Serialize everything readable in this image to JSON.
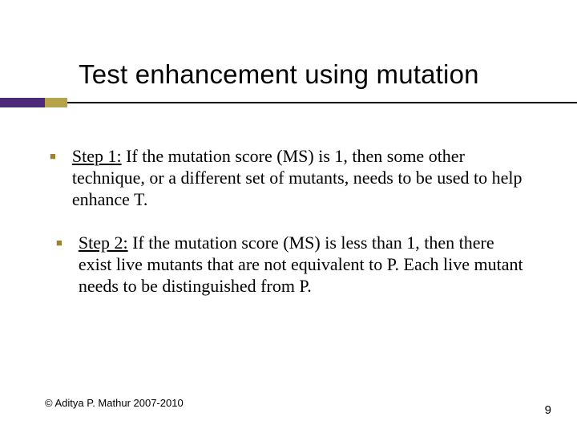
{
  "title": "Test enhancement using mutation",
  "accent_purple": "#4b2a7a",
  "accent_gold": "#b6a24a",
  "bullet_color": "#9a8433",
  "title_fontsize": 33,
  "body_fontsize": 22,
  "footer_fontsize": 13,
  "pagenum_fontsize": 15,
  "items": [
    {
      "lead": "Step 1:",
      "rest": " If the mutation score (MS) is 1, then some other technique, or a different set of mutants, needs to be used to help enhance T."
    },
    {
      "lead": "Step 2:",
      "rest": " If the mutation score (MS) is less than 1, then there exist live mutants that are not equivalent to P.  Each live mutant needs to be distinguished from P."
    }
  ],
  "footer": {
    "copyright": "© Aditya P. Mathur 2007-2010",
    "page_number": "9"
  }
}
